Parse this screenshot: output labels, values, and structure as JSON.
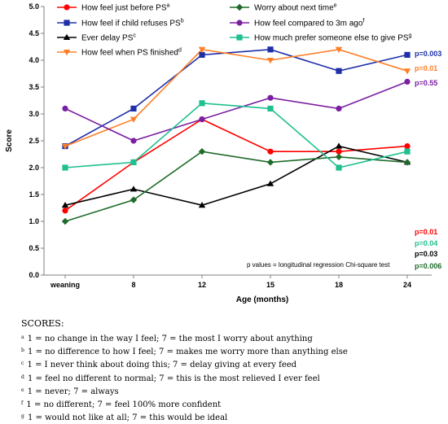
{
  "chart_data": {
    "type": "line",
    "title": "",
    "xlabel": "Age (months)",
    "ylabel": "Score",
    "ylim": [
      0,
      5
    ],
    "yticks": [
      "0.0",
      "0.5",
      "1.0",
      "1.5",
      "2.0",
      "2.5",
      "3.0",
      "3.5",
      "4.0",
      "4.5",
      "5.0"
    ],
    "categories": [
      "weaning",
      "8",
      "12",
      "15",
      "18",
      "24"
    ],
    "grid": false,
    "legend_placement": "top",
    "series": [
      {
        "name": "How feel just before PS",
        "sup": "a",
        "color": "#ff0000",
        "marker": "circle",
        "values": [
          1.2,
          2.1,
          2.9,
          2.3,
          2.3,
          2.4
        ],
        "pvalue": "p=0.01"
      },
      {
        "name": "How feel if child refuses PS",
        "sup": "b",
        "color": "#1f2fa8",
        "marker": "square",
        "values": [
          2.4,
          3.1,
          4.1,
          4.2,
          3.8,
          4.1
        ],
        "pvalue": "p=0.003"
      },
      {
        "name": "Ever delay PS",
        "sup": "c",
        "color": "#000000",
        "marker": "triangle",
        "values": [
          1.3,
          1.6,
          1.3,
          1.7,
          2.4,
          2.1
        ],
        "pvalue": "p=0.03"
      },
      {
        "name": "How feel when PS finished",
        "sup": "d",
        "color": "#ff7f27",
        "marker": "tri-down",
        "values": [
          2.4,
          2.9,
          4.2,
          4.0,
          4.2,
          3.8
        ],
        "pvalue": "p=0.01"
      },
      {
        "name": "Worry about next time",
        "sup": "e",
        "color": "#1f6b2a",
        "marker": "diamond",
        "values": [
          1.0,
          1.4,
          2.3,
          2.1,
          2.2,
          2.1
        ],
        "pvalue": "p=0.006"
      },
      {
        "name": "How feel compared to 3m ago",
        "sup": "f",
        "color": "#7a1fa2",
        "marker": "circle",
        "values": [
          3.1,
          2.5,
          2.9,
          3.3,
          3.1,
          3.6
        ],
        "pvalue": "p=0.55"
      },
      {
        "name": "How much prefer someone else to give PS",
        "sup": "g",
        "color": "#1fbf8f",
        "marker": "square",
        "values": [
          2.0,
          2.1,
          3.2,
          3.1,
          2.0,
          2.3
        ],
        "pvalue": "p=0.04"
      }
    ],
    "note": "p values = longitudinal regression Chi-square test"
  },
  "scores": {
    "heading": "SCORES:",
    "items": [
      {
        "sup": "a",
        "text": "1 = no change in the way I feel; 7 = the most I worry about anything"
      },
      {
        "sup": "b",
        "text": "1 = no difference to how I feel; 7 = makes me worry more than anything else"
      },
      {
        "sup": "c",
        "text": "1 = I never think about doing this; 7 = delay giving at every feed"
      },
      {
        "sup": "d",
        "text": "1 = feel no different to normal; 7 = this is the most relieved I ever feel"
      },
      {
        "sup": "e",
        "text": "1 = never; 7 = always"
      },
      {
        "sup": "f",
        "text": "1 = no different; 7 = feel 100% more confident"
      },
      {
        "sup": "g",
        "text": "1 = would not like at all; 7 = this would be ideal"
      }
    ]
  }
}
